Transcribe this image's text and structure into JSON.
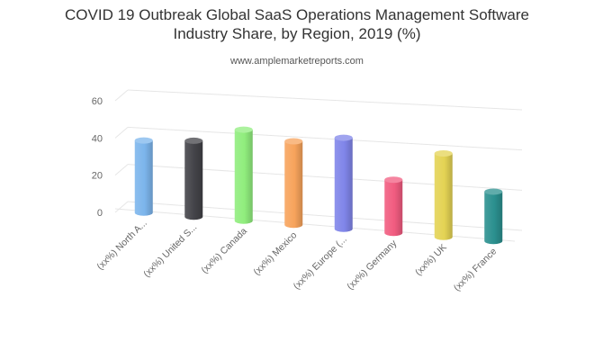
{
  "chart_data": {
    "type": "bar",
    "title_lines": [
      "COVID 19 Outbreak Global SaaS Operations Management Software",
      "Industry Share, by Region, 2019 (%)"
    ],
    "subtitle": "www.amplemarketreports.com",
    "categories": [
      "(xx%) North A...",
      "(xx%) United S...",
      "(xx%) Canada",
      "(xx%) Mexico",
      "(xx%) Europe (...",
      "(xx%) Germany",
      "(xx%) UK",
      "(xx%) France"
    ],
    "values": [
      38,
      40,
      48,
      44,
      48,
      28,
      44,
      26
    ],
    "colors": [
      "#7cb5ec",
      "#434348",
      "#90ed7d",
      "#f7a35c",
      "#8085e9",
      "#f15c80",
      "#e4d354",
      "#2b908f"
    ],
    "y_ticks": [
      "0",
      "20",
      "40",
      "60"
    ],
    "ylim": [
      0,
      60
    ],
    "xlabel": "",
    "ylabel": "",
    "grid": true,
    "style": "3d-cylinder"
  }
}
